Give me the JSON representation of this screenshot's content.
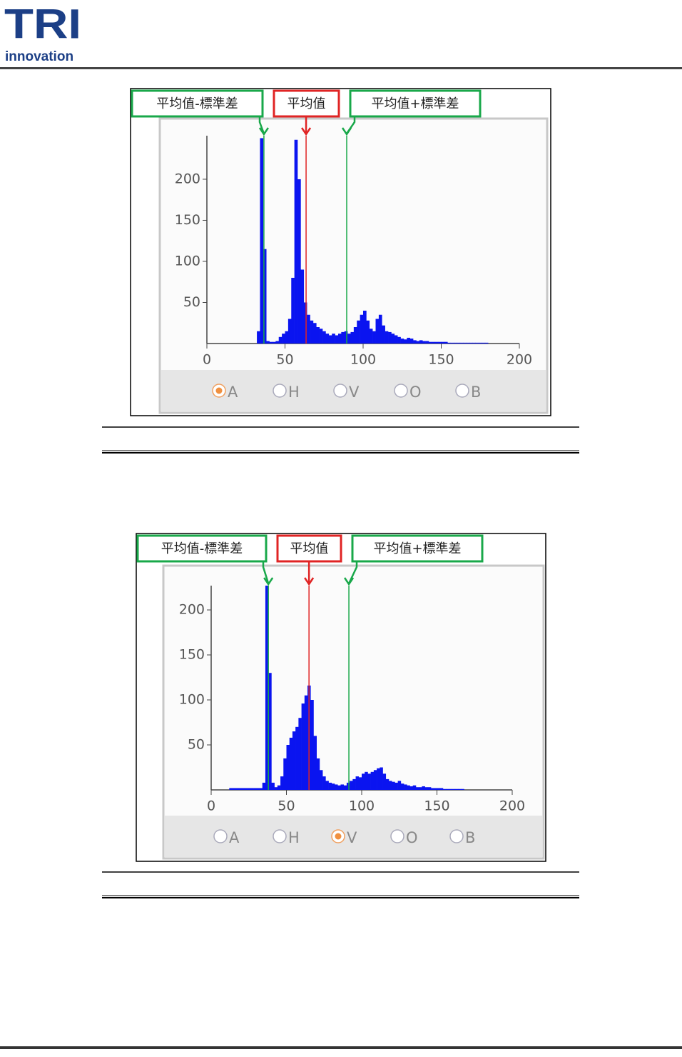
{
  "header": {
    "logo_mark": "TRI",
    "logo_text": "innovation"
  },
  "chart_data": [
    {
      "type": "histogram",
      "color": "#0a14f0",
      "bins": [
        30,
        32,
        34,
        36,
        38,
        40,
        42,
        44,
        46,
        48,
        50,
        52,
        54,
        56,
        58,
        60,
        62,
        64,
        66,
        68,
        70,
        72,
        74,
        76,
        78,
        80,
        82,
        84,
        86,
        88,
        90,
        92,
        94,
        96,
        98,
        100,
        102,
        104,
        106,
        108,
        110,
        112,
        114,
        116,
        118,
        120,
        122,
        124,
        126,
        128,
        130,
        132,
        134,
        136,
        138,
        140,
        142,
        144,
        146,
        148,
        150,
        152,
        154,
        156,
        158,
        160,
        162,
        164,
        166,
        168,
        170,
        172,
        174,
        176,
        178,
        180
      ],
      "counts": [
        0,
        15,
        250,
        115,
        3,
        2,
        2,
        3,
        8,
        12,
        15,
        30,
        80,
        248,
        200,
        90,
        50,
        35,
        28,
        25,
        20,
        18,
        15,
        12,
        10,
        12,
        10,
        12,
        14,
        15,
        12,
        14,
        20,
        28,
        35,
        40,
        28,
        18,
        15,
        30,
        35,
        22,
        15,
        14,
        12,
        10,
        8,
        6,
        5,
        7,
        6,
        4,
        3,
        4,
        3,
        3,
        2,
        2,
        2,
        2,
        2,
        2,
        1,
        1,
        1,
        1,
        1,
        1,
        1,
        1,
        1,
        1,
        1,
        1,
        1
      ],
      "xlim": [
        0,
        200
      ],
      "xticks": [
        0,
        50,
        100,
        150,
        200
      ],
      "ylim": [
        0,
        253
      ],
      "yticks": [
        50,
        100,
        150,
        200
      ],
      "ref_lines": [
        {
          "label": "平均值-標準差",
          "value": 36.5,
          "color": "#19a84a"
        },
        {
          "label": "平均值",
          "value": 63.5,
          "color": "#e02424"
        },
        {
          "label": "平均值+標準差",
          "value": 89.5,
          "color": "#19a84a"
        }
      ],
      "options": [
        "A",
        "H",
        "V",
        "O",
        "B"
      ],
      "selected": 0
    },
    {
      "type": "histogram",
      "color": "#0a14f0",
      "bins": [
        12,
        14,
        16,
        18,
        20,
        22,
        24,
        26,
        28,
        30,
        32,
        34,
        36,
        38,
        40,
        42,
        44,
        46,
        48,
        50,
        52,
        54,
        56,
        58,
        60,
        62,
        64,
        66,
        68,
        70,
        72,
        74,
        76,
        78,
        80,
        82,
        84,
        86,
        88,
        90,
        92,
        94,
        96,
        98,
        100,
        102,
        104,
        106,
        108,
        110,
        112,
        114,
        116,
        118,
        120,
        122,
        124,
        126,
        128,
        130,
        132,
        134,
        136,
        138,
        140,
        142,
        144,
        146,
        148,
        150,
        152,
        154,
        156,
        158,
        160,
        162,
        164,
        166,
        168
      ],
      "counts": [
        2,
        2,
        2,
        2,
        2,
        2,
        2,
        2,
        2,
        2,
        2,
        8,
        227,
        130,
        8,
        3,
        5,
        15,
        35,
        50,
        58,
        65,
        70,
        80,
        96,
        105,
        116,
        100,
        60,
        35,
        22,
        15,
        10,
        8,
        7,
        6,
        5,
        6,
        5,
        8,
        10,
        12,
        15,
        14,
        18,
        20,
        18,
        20,
        22,
        24,
        25,
        18,
        12,
        10,
        9,
        8,
        10,
        7,
        6,
        5,
        4,
        5,
        3,
        3,
        4,
        3,
        3,
        2,
        2,
        2,
        2,
        1,
        1,
        1,
        1,
        1,
        1,
        1
      ],
      "xlim": [
        0,
        200
      ],
      "xticks": [
        0,
        50,
        100,
        150,
        200
      ],
      "ylim": [
        0,
        227
      ],
      "yticks": [
        50,
        100,
        150,
        200
      ],
      "ref_lines": [
        {
          "label": "平均值-標準差",
          "value": 38,
          "color": "#19a84a"
        },
        {
          "label": "平均值",
          "value": 65,
          "color": "#e02424"
        },
        {
          "label": "平均值+標準差",
          "value": 91.5,
          "color": "#19a84a"
        }
      ],
      "options": [
        "A",
        "H",
        "V",
        "O",
        "B"
      ],
      "selected": 2
    }
  ]
}
